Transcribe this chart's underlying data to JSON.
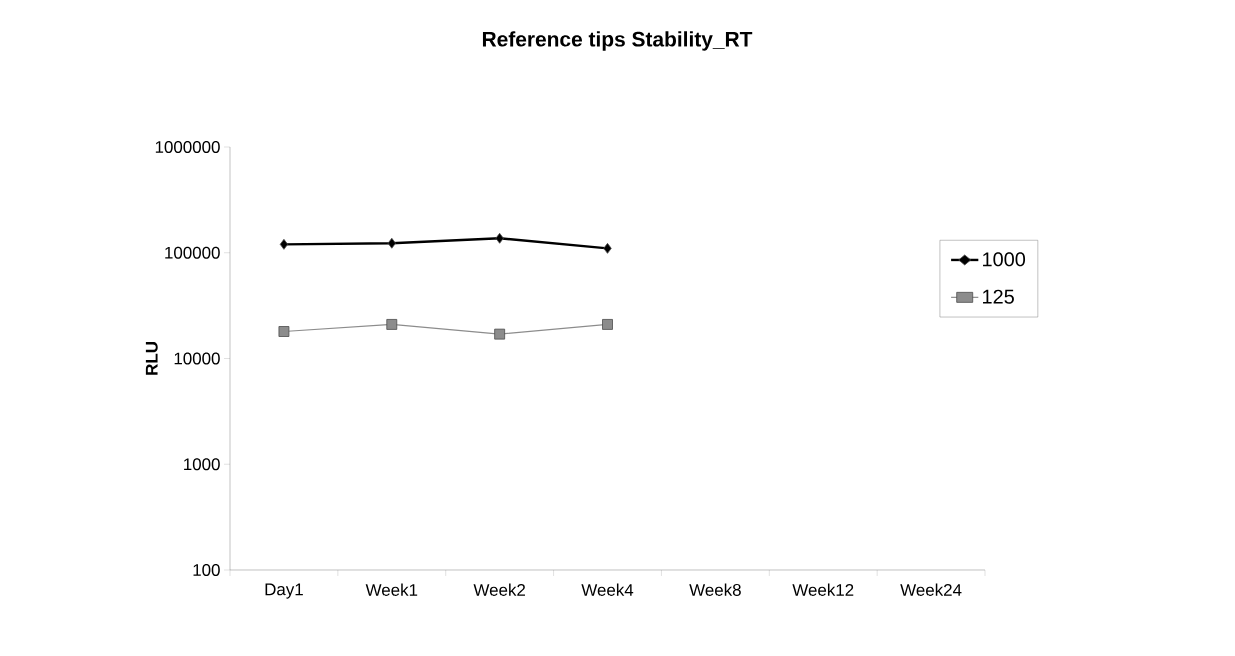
{
  "chart_data": {
    "type": "line",
    "title": "Reference tips Stability_RT",
    "ylabel": "RLU",
    "categories": [
      "Day1",
      "Week1",
      "Week2",
      "Week4",
      "Week8",
      "Week12",
      "Week24"
    ],
    "series": [
      {
        "name": "1000",
        "color": "#000000",
        "marker": "diamond",
        "values": [
          120000,
          123000,
          137000,
          110000,
          null,
          null,
          null
        ]
      },
      {
        "name": "125",
        "color": "#8c8c8c",
        "marker": "square",
        "values": [
          18000,
          21000,
          17000,
          21000,
          null,
          null,
          null
        ]
      }
    ],
    "log": "y",
    "ylim": [
      100,
      1000000
    ],
    "yticks": [
      100,
      1000,
      10000,
      100000,
      1000000
    ],
    "grid": false,
    "legend": "right"
  }
}
